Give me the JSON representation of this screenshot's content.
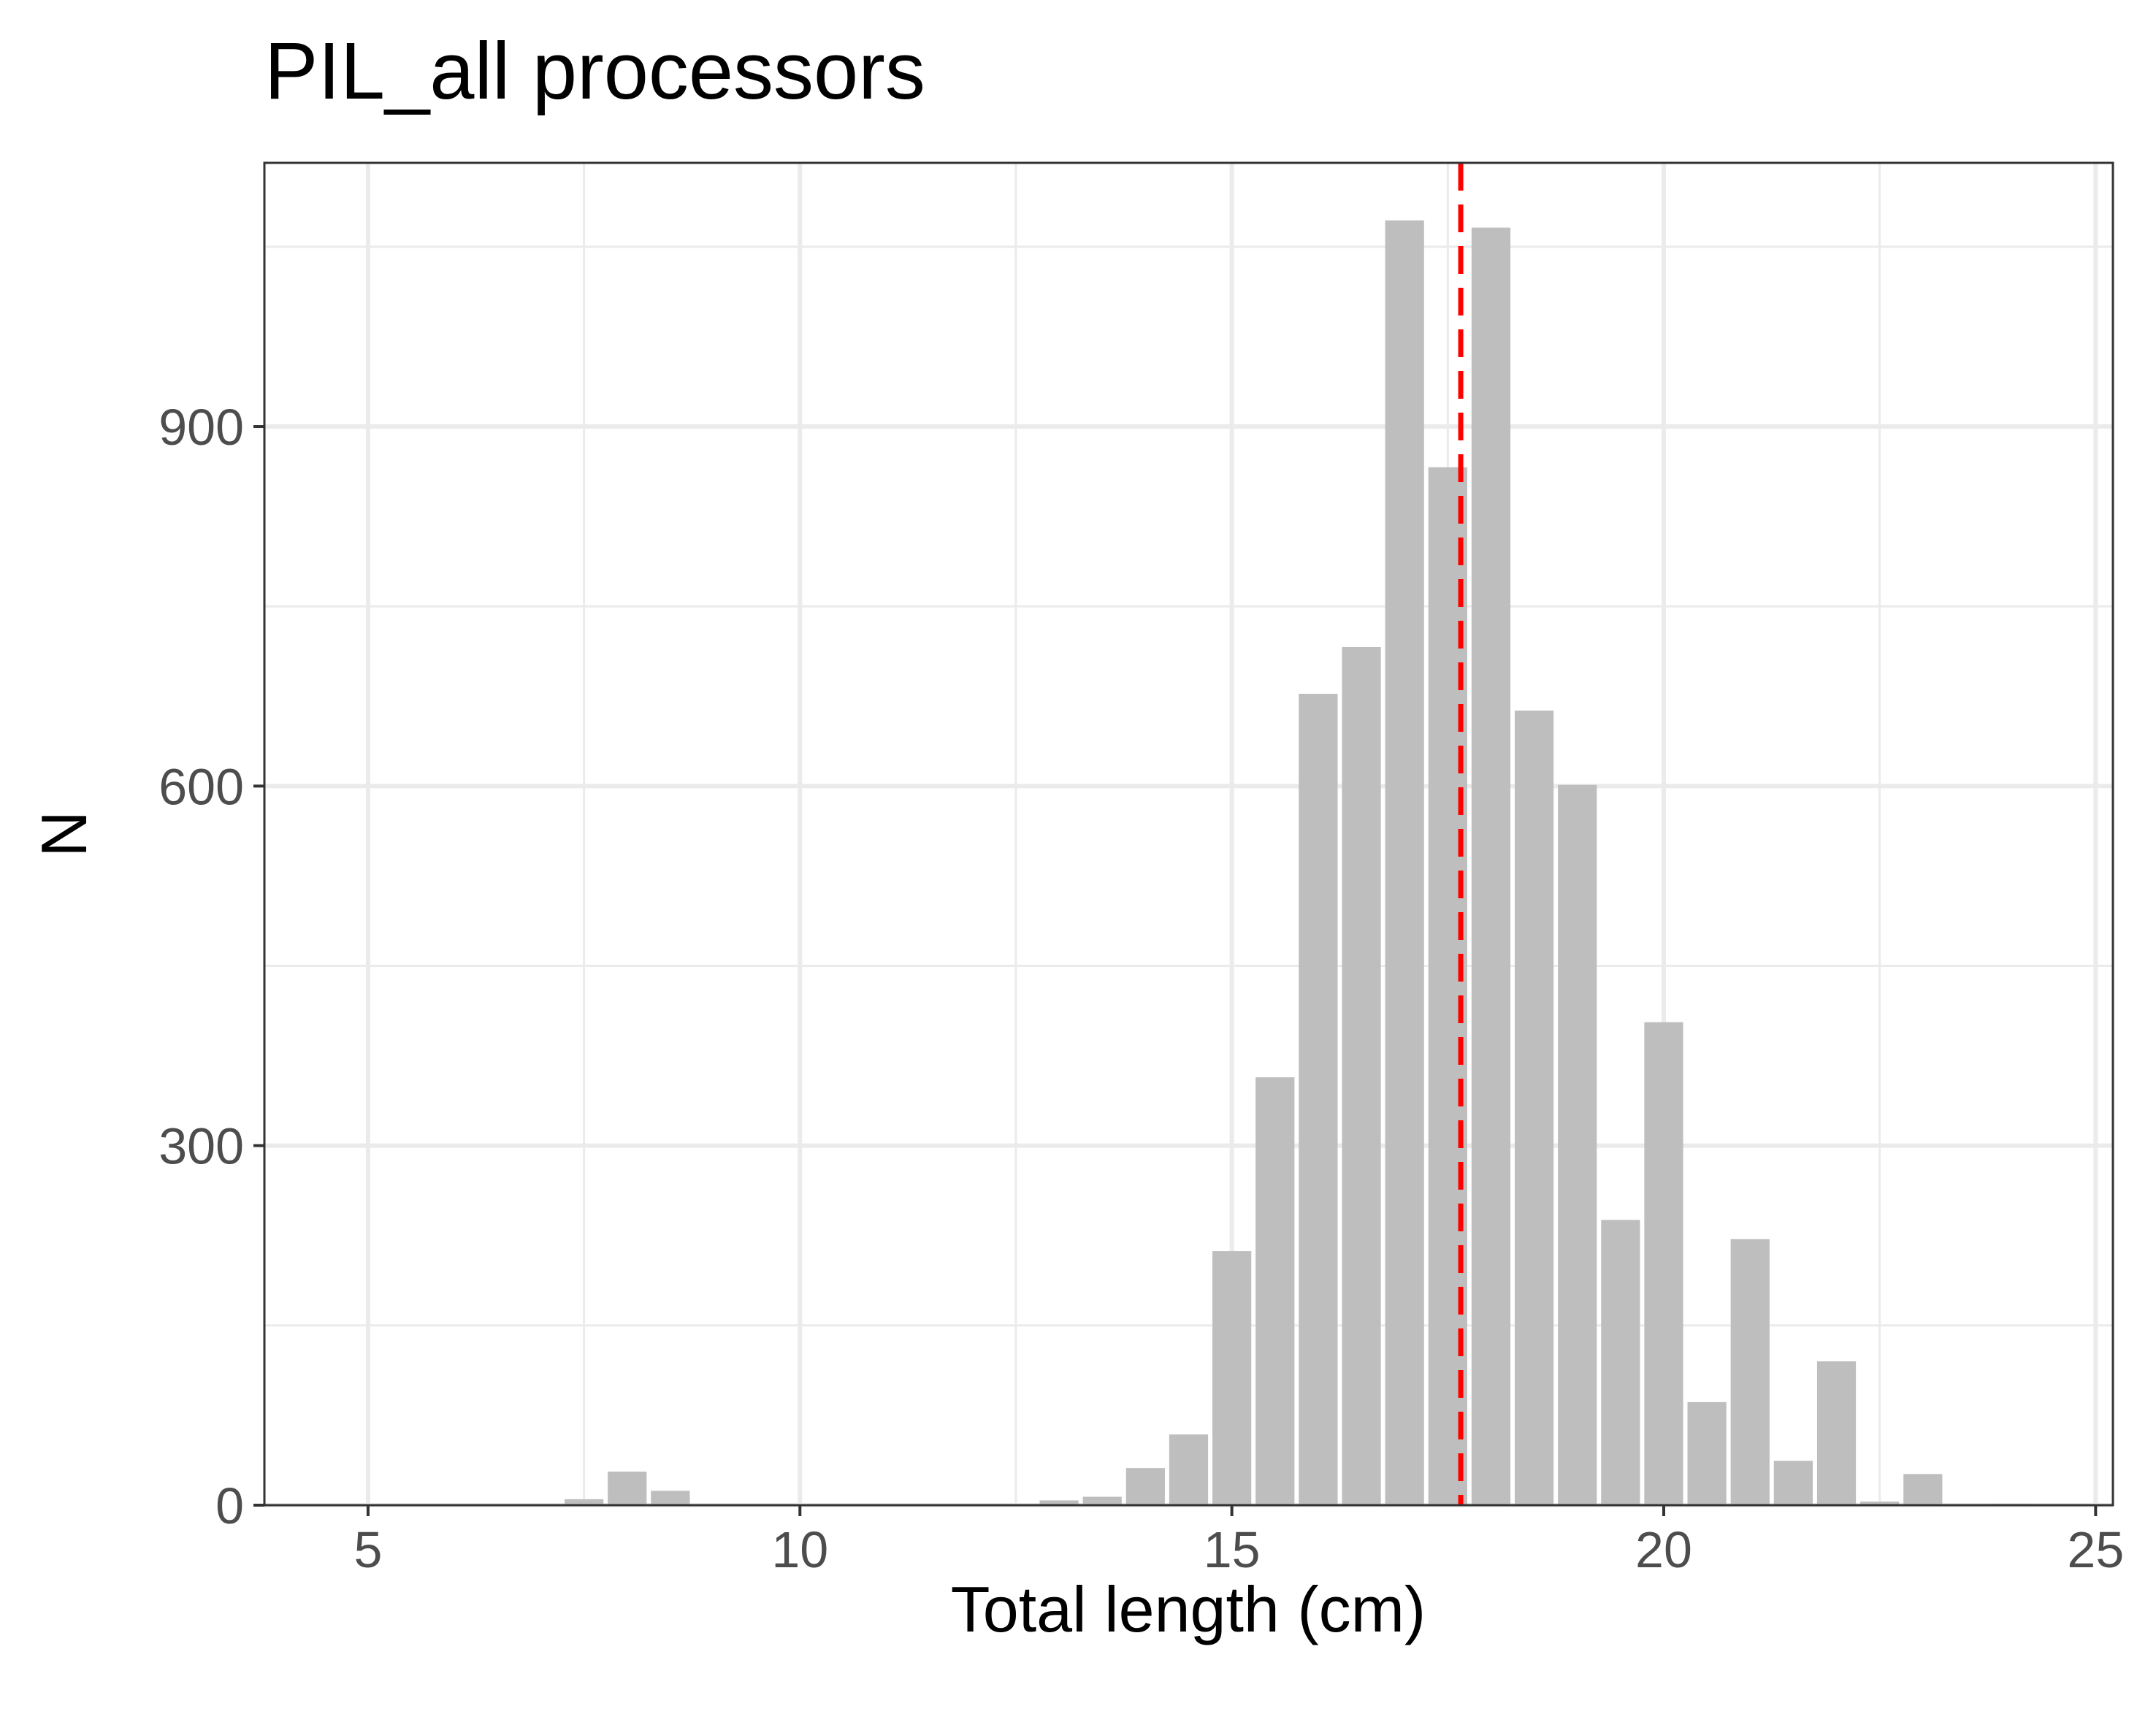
{
  "chart_data": {
    "type": "bar",
    "title": "PIL_all processors",
    "xlabel": "Total length (cm)",
    "ylabel": "N",
    "xlim": [
      3.8,
      25.2
    ],
    "ylim": [
      0,
      1120
    ],
    "x_ticks": [
      5,
      10,
      15,
      20,
      25
    ],
    "y_ticks": [
      0,
      300,
      600,
      900
    ],
    "y_minor_ticks": [
      150,
      450,
      750,
      1050
    ],
    "x_minor_ticks": [
      7.5,
      12.5,
      17.5,
      22.5
    ],
    "bin_width": 0.5,
    "grid": true,
    "series": [
      {
        "x": [
          7.5,
          8.0,
          8.5,
          13.0,
          13.5,
          14.0,
          14.5,
          15.0,
          15.5,
          16.0,
          16.5,
          17.0,
          17.5,
          18.0,
          18.5,
          19.0,
          19.5,
          20.0,
          20.5,
          21.0,
          21.5,
          22.0,
          22.5,
          23.0,
          24.0
        ],
        "values": [
          5,
          28,
          12,
          4,
          7,
          31,
          59,
          212,
          357,
          677,
          716,
          1072,
          866,
          1066,
          663,
          601,
          238,
          403,
          86,
          222,
          37,
          120,
          3,
          26,
          1
        ],
        "color": "#bebebe"
      }
    ],
    "reference_line": {
      "x": 17.65,
      "color": "#ff0000",
      "style": "dashed"
    },
    "colors": {
      "panel_border": "#333333",
      "grid": "#ebebeb",
      "tick_text": "#4d4d4d",
      "text": "#000000"
    }
  }
}
